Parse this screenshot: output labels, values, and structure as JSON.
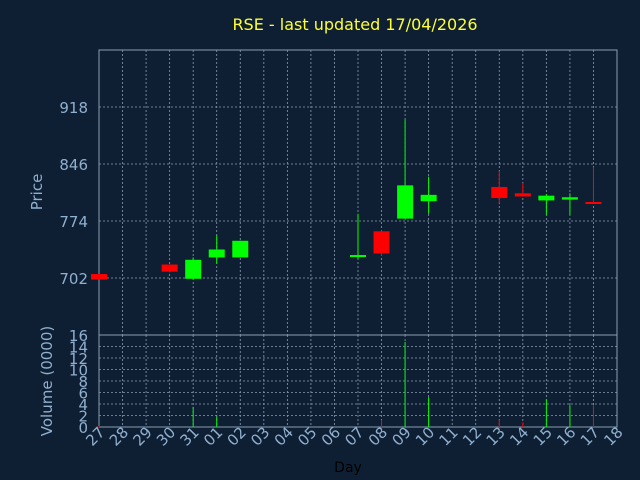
{
  "chart_data": [
    {
      "type": "candlestick",
      "title": "RSE - last updated 17/04/2026",
      "ylabel": "Price",
      "xlabel": "Day",
      "grid": true,
      "ylim": [
        630,
        990
      ],
      "y_ticks": [
        702,
        774,
        846,
        918
      ],
      "x_tick_labels": [
        "27",
        "28",
        "29",
        "30",
        "31",
        "01",
        "02",
        "03",
        "04",
        "05",
        "06",
        "07",
        "08",
        "09",
        "10",
        "11",
        "12",
        "13",
        "14",
        "15",
        "16",
        "17",
        "18"
      ],
      "candles": [
        {
          "day": "27",
          "open": 707,
          "close": 700,
          "high": 707,
          "low": 700
        },
        {
          "day": "30",
          "open": 719,
          "close": 710,
          "high": 719,
          "low": 709
        },
        {
          "day": "31",
          "open": 701,
          "close": 725,
          "high": 728,
          "low": 700
        },
        {
          "day": "01",
          "open": 728,
          "close": 738,
          "high": 756,
          "low": 720
        },
        {
          "day": "02",
          "open": 728,
          "close": 749,
          "high": 749,
          "low": 728
        },
        {
          "day": "07",
          "open": 730,
          "close": 731,
          "high": 783,
          "low": 726
        },
        {
          "day": "08",
          "open": 761,
          "close": 733,
          "high": 762,
          "low": 730
        },
        {
          "day": "09",
          "open": 777,
          "close": 819,
          "high": 902,
          "low": 777
        },
        {
          "day": "10",
          "open": 799,
          "close": 807,
          "high": 830,
          "low": 783
        },
        {
          "day": "13",
          "open": 817,
          "close": 803,
          "high": 837,
          "low": 797
        },
        {
          "day": "14",
          "open": 809,
          "close": 805,
          "high": 822,
          "low": 805
        },
        {
          "day": "15",
          "open": 800,
          "close": 806,
          "high": 808,
          "low": 782
        },
        {
          "day": "16",
          "open": 801,
          "close": 804,
          "high": 809,
          "low": 782
        },
        {
          "day": "17",
          "open": 798,
          "close": 797,
          "high": 842,
          "low": 796
        }
      ]
    },
    {
      "type": "bar",
      "ylabel": "Volume (0000)",
      "ylim": [
        0,
        16
      ],
      "y_ticks": [
        0,
        2,
        4,
        6,
        8,
        10,
        12,
        14,
        16
      ],
      "categories": [
        "27",
        "31",
        "01",
        "08",
        "09",
        "10",
        "13",
        "14",
        "15",
        "16",
        "17"
      ],
      "values": [
        0.2,
        3.5,
        1.8,
        1.2,
        14.8,
        5.2,
        1.2,
        0.8,
        4.8,
        3.8,
        3.8
      ],
      "bar_colors": [
        "#ff0000",
        "#00ff00",
        "#00ff00",
        "#ff0000",
        "#00ff00",
        "#00ff00",
        "#ff0000",
        "#ff0000",
        "#00ff00",
        "#00ff00",
        "#ff0000"
      ]
    }
  ],
  "colors": {
    "background": "#0f1f33",
    "title": "#ffff33",
    "axis_text": "#8fb0cf",
    "grid": "#8a9cb0",
    "up": "#00ff00",
    "down": "#ff0000"
  }
}
